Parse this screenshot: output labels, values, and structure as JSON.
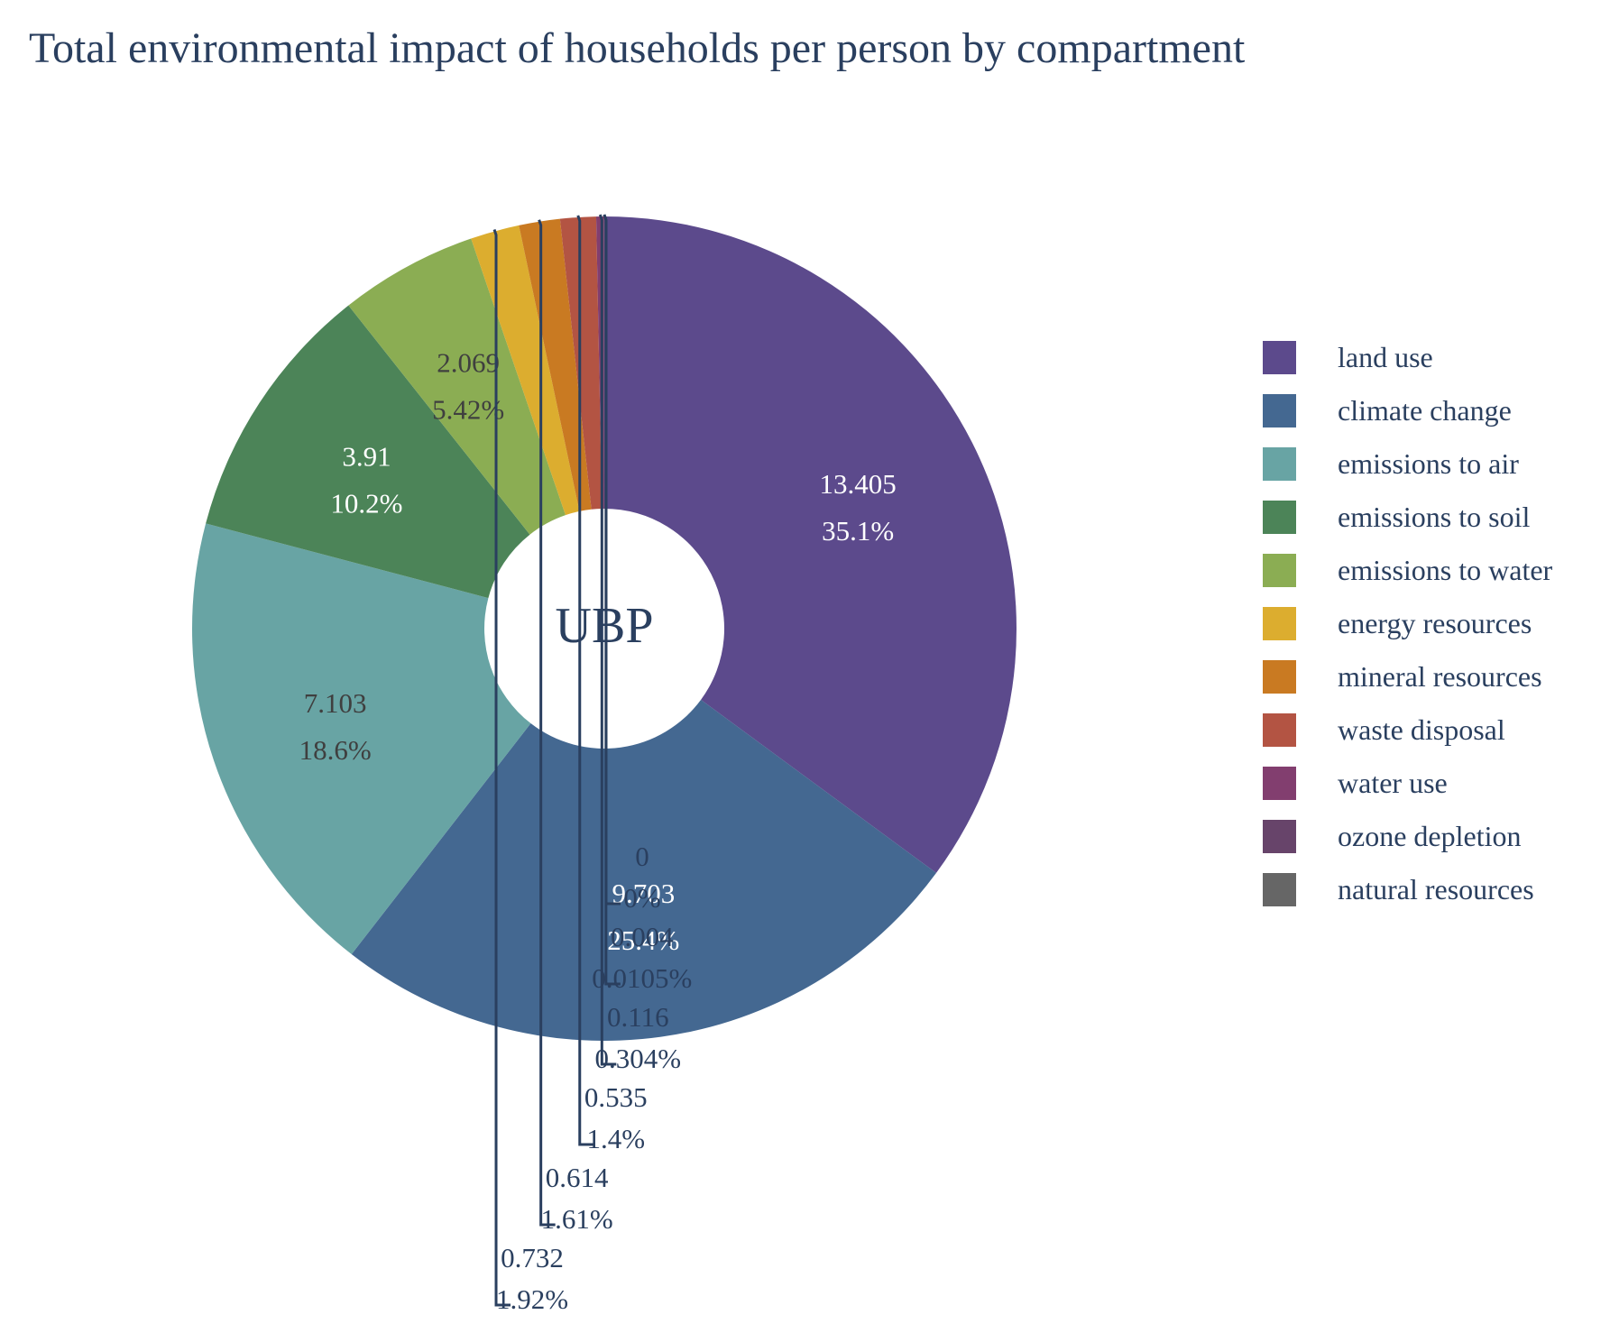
{
  "chart_data": {
    "type": "pie",
    "title": "Total environmental impact of households per person by compartment",
    "center_label": "UBP",
    "hole": true,
    "legend_position": "right",
    "slices": [
      {
        "name": "land use",
        "value": 13.405,
        "value_label": "13.405",
        "percent_label": "35.1%",
        "color": "#5c4a8c",
        "text_color": "#ffffff",
        "label_mode": "inside"
      },
      {
        "name": "climate change",
        "value": 9.703,
        "value_label": "9.703",
        "percent_label": "25.4%",
        "color": "#446891",
        "text_color": "#ffffff",
        "label_mode": "inside"
      },
      {
        "name": "emissions to air",
        "value": 7.103,
        "value_label": "7.103",
        "percent_label": "18.6%",
        "color": "#68a4a4",
        "text_color": "#3f3f3f",
        "label_mode": "inside"
      },
      {
        "name": "emissions to soil",
        "value": 3.91,
        "value_label": "3.91",
        "percent_label": "10.2%",
        "color": "#4c8458",
        "text_color": "#ffffff",
        "label_mode": "inside"
      },
      {
        "name": "emissions to water",
        "value": 2.069,
        "value_label": "2.069",
        "percent_label": "5.42%",
        "color": "#8bad53",
        "text_color": "#3f3f3f",
        "label_mode": "inside"
      },
      {
        "name": "energy resources",
        "value": 0.732,
        "value_label": "0.732",
        "percent_label": "1.92%",
        "color": "#dcad2f",
        "text_color": "#2a3f5f",
        "label_mode": "outside"
      },
      {
        "name": "mineral resources",
        "value": 0.614,
        "value_label": "0.614",
        "percent_label": "1.61%",
        "color": "#c97a22",
        "text_color": "#2a3f5f",
        "label_mode": "outside"
      },
      {
        "name": "waste disposal",
        "value": 0.535,
        "value_label": "0.535",
        "percent_label": "1.4%",
        "color": "#b35443",
        "text_color": "#2a3f5f",
        "label_mode": "outside"
      },
      {
        "name": "water use",
        "value": 0.116,
        "value_label": "0.116",
        "percent_label": "0.304%",
        "color": "#823e6f",
        "text_color": "#2a3f5f",
        "label_mode": "outside"
      },
      {
        "name": "ozone depletion",
        "value": 0.004,
        "value_label": "0.004",
        "percent_label": "0.0105%",
        "color": "#67446a",
        "text_color": "#2a3f5f",
        "label_mode": "outside"
      },
      {
        "name": "natural resources",
        "value": 0,
        "value_label": "0",
        "percent_label": "0%",
        "color": "#666666",
        "text_color": "#2a3f5f",
        "label_mode": "outside"
      }
    ]
  }
}
